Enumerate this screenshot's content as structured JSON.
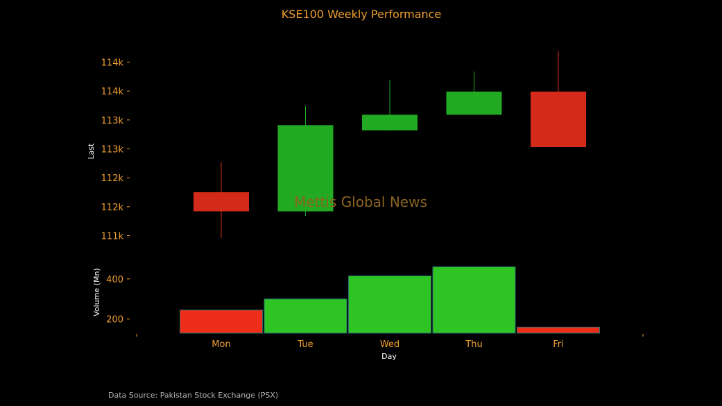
{
  "chart_data": {
    "type": "candlestick",
    "title": "KSE100 Weekly Performance",
    "watermark": "Mettis Global News",
    "footer": "Data Source: Pakistan Stock Exchange (PSX)",
    "categories": [
      "Mon",
      "Tue",
      "Wed",
      "Thu",
      "Fri"
    ],
    "xlabel": "Day",
    "price": {
      "ylabel": "Last",
      "ticks": [
        111000,
        111500,
        112000,
        112500,
        113000,
        113500,
        114000
      ],
      "tick_labels": [
        "111k",
        "112k",
        "112k",
        "113k",
        "113k",
        "114k",
        "114k"
      ],
      "ylim": [
        110850,
        114150
      ],
      "ohlc": [
        {
          "open": 111750,
          "high": 112270,
          "low": 110960,
          "close": 111420
        },
        {
          "open": 111420,
          "high": 113240,
          "low": 111340,
          "close": 112910
        },
        {
          "open": 112820,
          "high": 113690,
          "low": 112810,
          "close": 113090
        },
        {
          "open": 113090,
          "high": 113840,
          "low": 113090,
          "close": 113490
        },
        {
          "open": 113490,
          "high": 114190,
          "low": 112530,
          "close": 112530
        }
      ]
    },
    "volume": {
      "ylabel": "Volume (Mn)",
      "ticks": [
        200,
        400
      ],
      "tick_labels": [
        "200",
        "400"
      ],
      "ylim": [
        130,
        510
      ],
      "values": [
        245,
        300,
        415,
        460,
        160
      ]
    },
    "colors": {
      "up": "#22aa22",
      "down": "#d42a1a",
      "volume_up": "#2ec424",
      "volume_down": "#ee2e1a",
      "text_accent": "#f0a030"
    }
  }
}
